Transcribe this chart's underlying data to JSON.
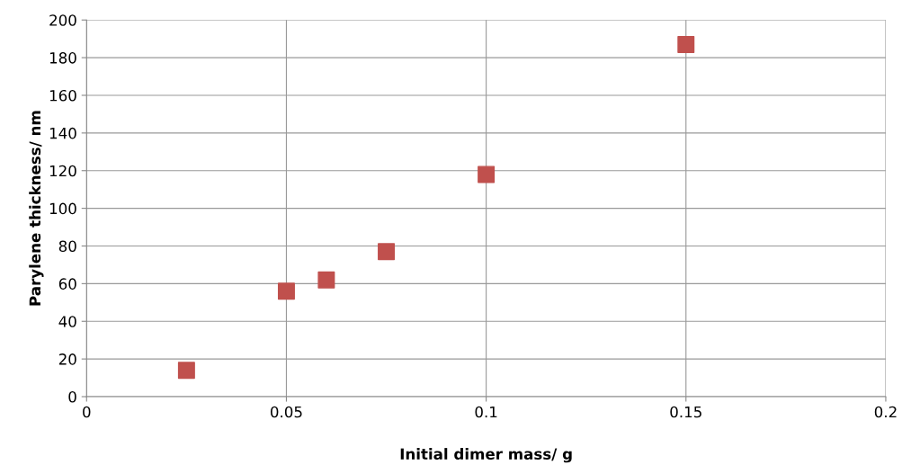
{
  "chart_data": {
    "type": "scatter",
    "xlabel": "Initial dimer mass/ g",
    "ylabel": "Parylene thickness/ nm",
    "x": [
      0.025,
      0.05,
      0.06,
      0.075,
      0.1,
      0.15
    ],
    "series": [
      {
        "color": "#c0504d",
        "values": [
          14,
          56,
          62,
          77,
          118,
          187
        ]
      }
    ],
    "xlim": [
      0,
      0.2
    ],
    "xticks": [
      0,
      0.05,
      0.1,
      0.15,
      0.2
    ],
    "ylim": [
      0,
      200
    ],
    "yticks": [
      0,
      20,
      40,
      60,
      80,
      100,
      120,
      140,
      160,
      180,
      200
    ],
    "grid": true,
    "marker": "square",
    "legend": false
  }
}
